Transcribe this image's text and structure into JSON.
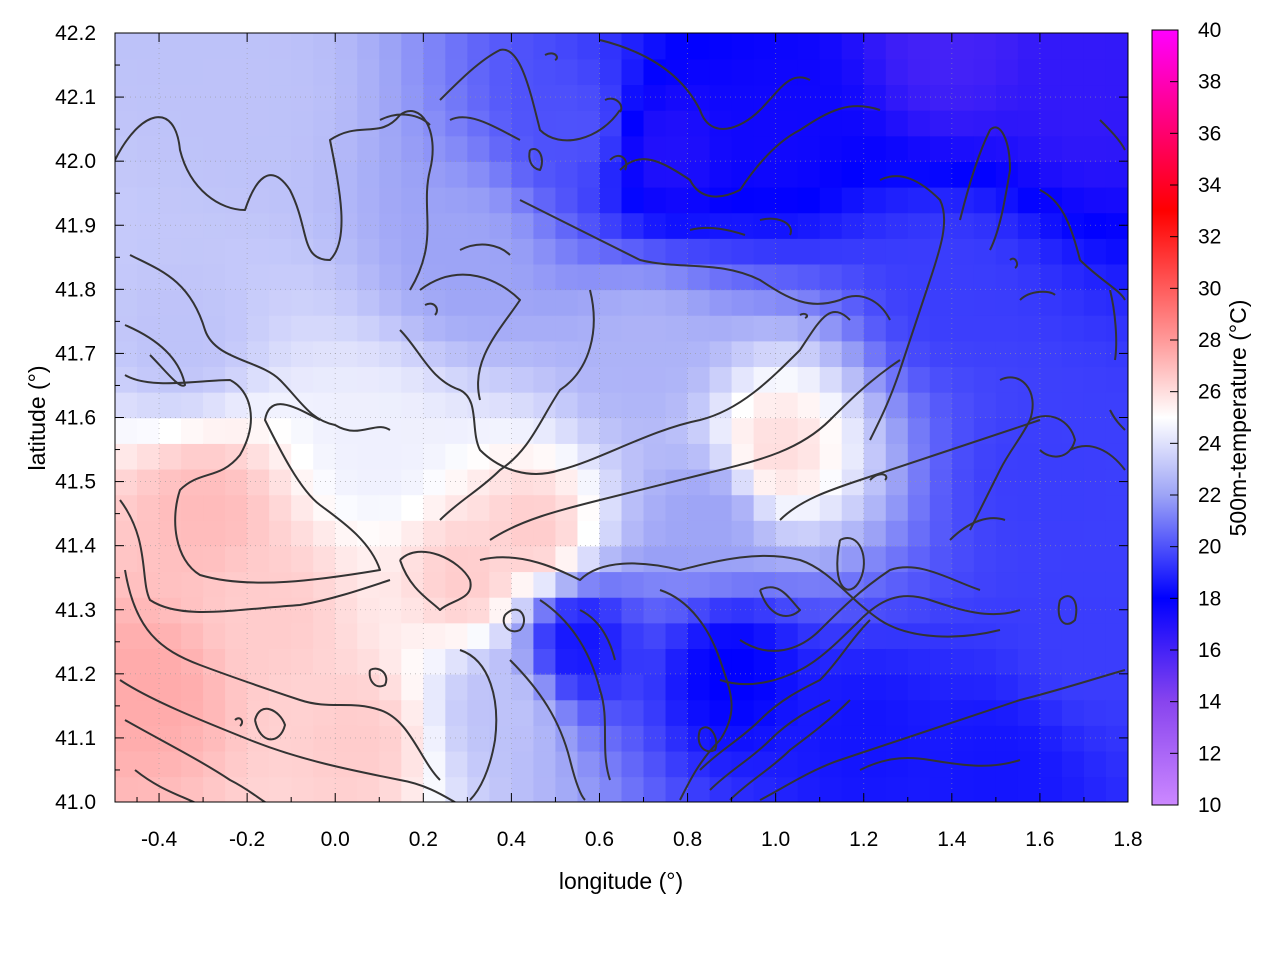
{
  "chart_data": {
    "type": "heatmap",
    "title": "",
    "xlabel": "longitude (°)",
    "ylabel": "latitude (°)",
    "colorbar_label": "500m-temperature (°C)",
    "xlim": [
      -0.5,
      1.8
    ],
    "ylim": [
      41.0,
      42.2
    ],
    "x_ticks": [
      -0.4,
      -0.2,
      0.0,
      0.2,
      0.4,
      0.6,
      0.8,
      1.0,
      1.2,
      1.4,
      1.6,
      1.8
    ],
    "x_tick_labels": [
      "-0.4",
      "-0.2",
      "0.0",
      "0.2",
      "0.4",
      "0.6",
      "0.8",
      "1.0",
      "1.2",
      "1.4",
      "1.6",
      "1.8"
    ],
    "y_ticks": [
      41.0,
      41.1,
      41.2,
      41.3,
      41.4,
      41.5,
      41.6,
      41.7,
      41.8,
      41.9,
      42.0,
      42.1,
      42.2
    ],
    "y_tick_labels": [
      "41.0",
      "41.1",
      "41.2",
      "41.3",
      "41.4",
      "41.5",
      "41.6",
      "41.7",
      "41.8",
      "41.9",
      "42.0",
      "42.1",
      "42.2"
    ],
    "colorbar_range": [
      10,
      40
    ],
    "colorbar_ticks": [
      10,
      12,
      14,
      16,
      18,
      20,
      22,
      24,
      26,
      28,
      30,
      32,
      34,
      36,
      38,
      40
    ],
    "colorbar_tick_labels": [
      "10",
      "12",
      "14",
      "16",
      "18",
      "20",
      "22",
      "24",
      "26",
      "28",
      "30",
      "32",
      "34",
      "36",
      "38",
      "40"
    ],
    "colormap": [
      {
        "value": 10,
        "color": "#cc88ff"
      },
      {
        "value": 14,
        "color": "#8844ee"
      },
      {
        "value": 18,
        "color": "#0000ff"
      },
      {
        "value": 22,
        "color": "#9da4f6"
      },
      {
        "value": 25,
        "color": "#ffffff"
      },
      {
        "value": 28,
        "color": "#ff9999"
      },
      {
        "value": 33,
        "color": "#ff0000"
      },
      {
        "value": 40,
        "color": "#ff00ff"
      }
    ],
    "grid": true,
    "contours": "terrain contour lines (dark gray)",
    "field": {
      "description": "approximate temperature field reconstructed from the colour scale",
      "regions": [
        {
          "lon": -0.42,
          "lat": 41.18,
          "temp": 27.5
        },
        {
          "lon": -0.3,
          "lat": 41.45,
          "temp": 27
        },
        {
          "lon": -0.15,
          "lat": 41.3,
          "temp": 26.5
        },
        {
          "lon": 0.05,
          "lat": 41.1,
          "temp": 26.5
        },
        {
          "lon": 0.3,
          "lat": 41.35,
          "temp": 26.5
        },
        {
          "lon": 0.45,
          "lat": 41.42,
          "temp": 26.5
        },
        {
          "lon": 1.0,
          "lat": 41.55,
          "temp": 26
        },
        {
          "lon": 0.1,
          "lat": 41.55,
          "temp": 24.5
        },
        {
          "lon": -0.35,
          "lat": 41.72,
          "temp": 23
        },
        {
          "lon": -0.2,
          "lat": 42.1,
          "temp": 23
        },
        {
          "lon": 0.3,
          "lat": 41.85,
          "temp": 22
        },
        {
          "lon": 0.7,
          "lat": 41.7,
          "temp": 22.5
        },
        {
          "lon": 0.55,
          "lat": 42.05,
          "temp": 20
        },
        {
          "lon": 0.75,
          "lat": 42.02,
          "temp": 17
        },
        {
          "lon": 1.0,
          "lat": 42.05,
          "temp": 17.5
        },
        {
          "lon": 1.4,
          "lat": 42.18,
          "temp": 16
        },
        {
          "lon": 1.7,
          "lat": 42.12,
          "temp": 16.5
        },
        {
          "lon": 1.4,
          "lat": 41.8,
          "temp": 19.5
        },
        {
          "lon": 1.6,
          "lat": 41.5,
          "temp": 19.5
        },
        {
          "lon": 0.55,
          "lat": 41.25,
          "temp": 18.5
        },
        {
          "lon": 0.9,
          "lat": 41.2,
          "temp": 18
        },
        {
          "lon": 1.2,
          "lat": 41.1,
          "temp": 18.5
        },
        {
          "lon": 1.5,
          "lat": 41.05,
          "temp": 18.5
        },
        {
          "lon": 0.85,
          "lat": 41.45,
          "temp": 22
        },
        {
          "lon": 0.38,
          "lat": 41.15,
          "temp": 23
        },
        {
          "lon": 1.7,
          "lat": 41.25,
          "temp": 19.5
        }
      ]
    }
  }
}
